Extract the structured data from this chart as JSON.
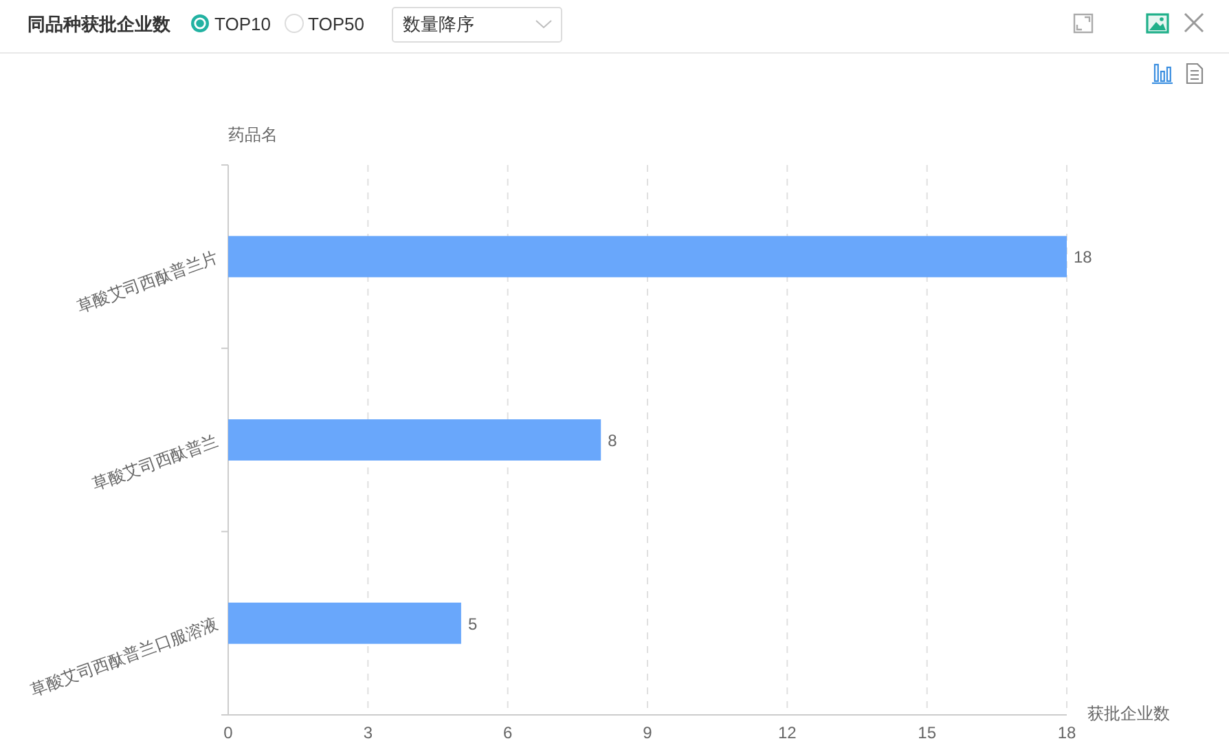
{
  "chart_data": {
    "type": "bar",
    "orientation": "horizontal",
    "title": "同品种获批企业数",
    "xlabel": "获批企业数",
    "ylabel": "药品名",
    "categories": [
      "草酸艾司西酞普兰片",
      "草酸艾司西酞普兰",
      "草酸艾司西酞普兰口服溶液"
    ],
    "values": [
      18,
      8,
      5
    ],
    "color": "#69a7fb",
    "xlim": [
      0,
      18
    ],
    "xticks": [
      0,
      3,
      6,
      9,
      12,
      15,
      18
    ],
    "grid": "x",
    "data_labels": true,
    "annotations": [
      "TOP10",
      "TOP50",
      "数量降序"
    ]
  }
}
